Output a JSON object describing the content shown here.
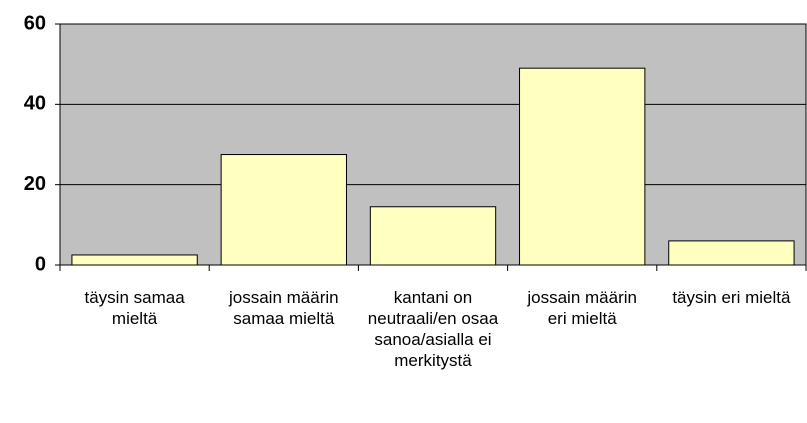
{
  "chart_data": {
    "type": "bar",
    "categories": [
      "täysin samaa mieltä",
      "jossain määrin samaa mieltä",
      "kantani on neutraali/en osaa sanoa/asialla ei merkitystä",
      "jossain määrin eri mieltä",
      "täysin eri mieltä"
    ],
    "values": [
      2.5,
      27.5,
      14.5,
      49,
      6
    ],
    "color": "#ffffc0",
    "plot_color": "#c0c0c0",
    "ylim": [
      0,
      60
    ],
    "yticks": [
      0,
      20,
      40,
      60
    ],
    "grid": true
  }
}
